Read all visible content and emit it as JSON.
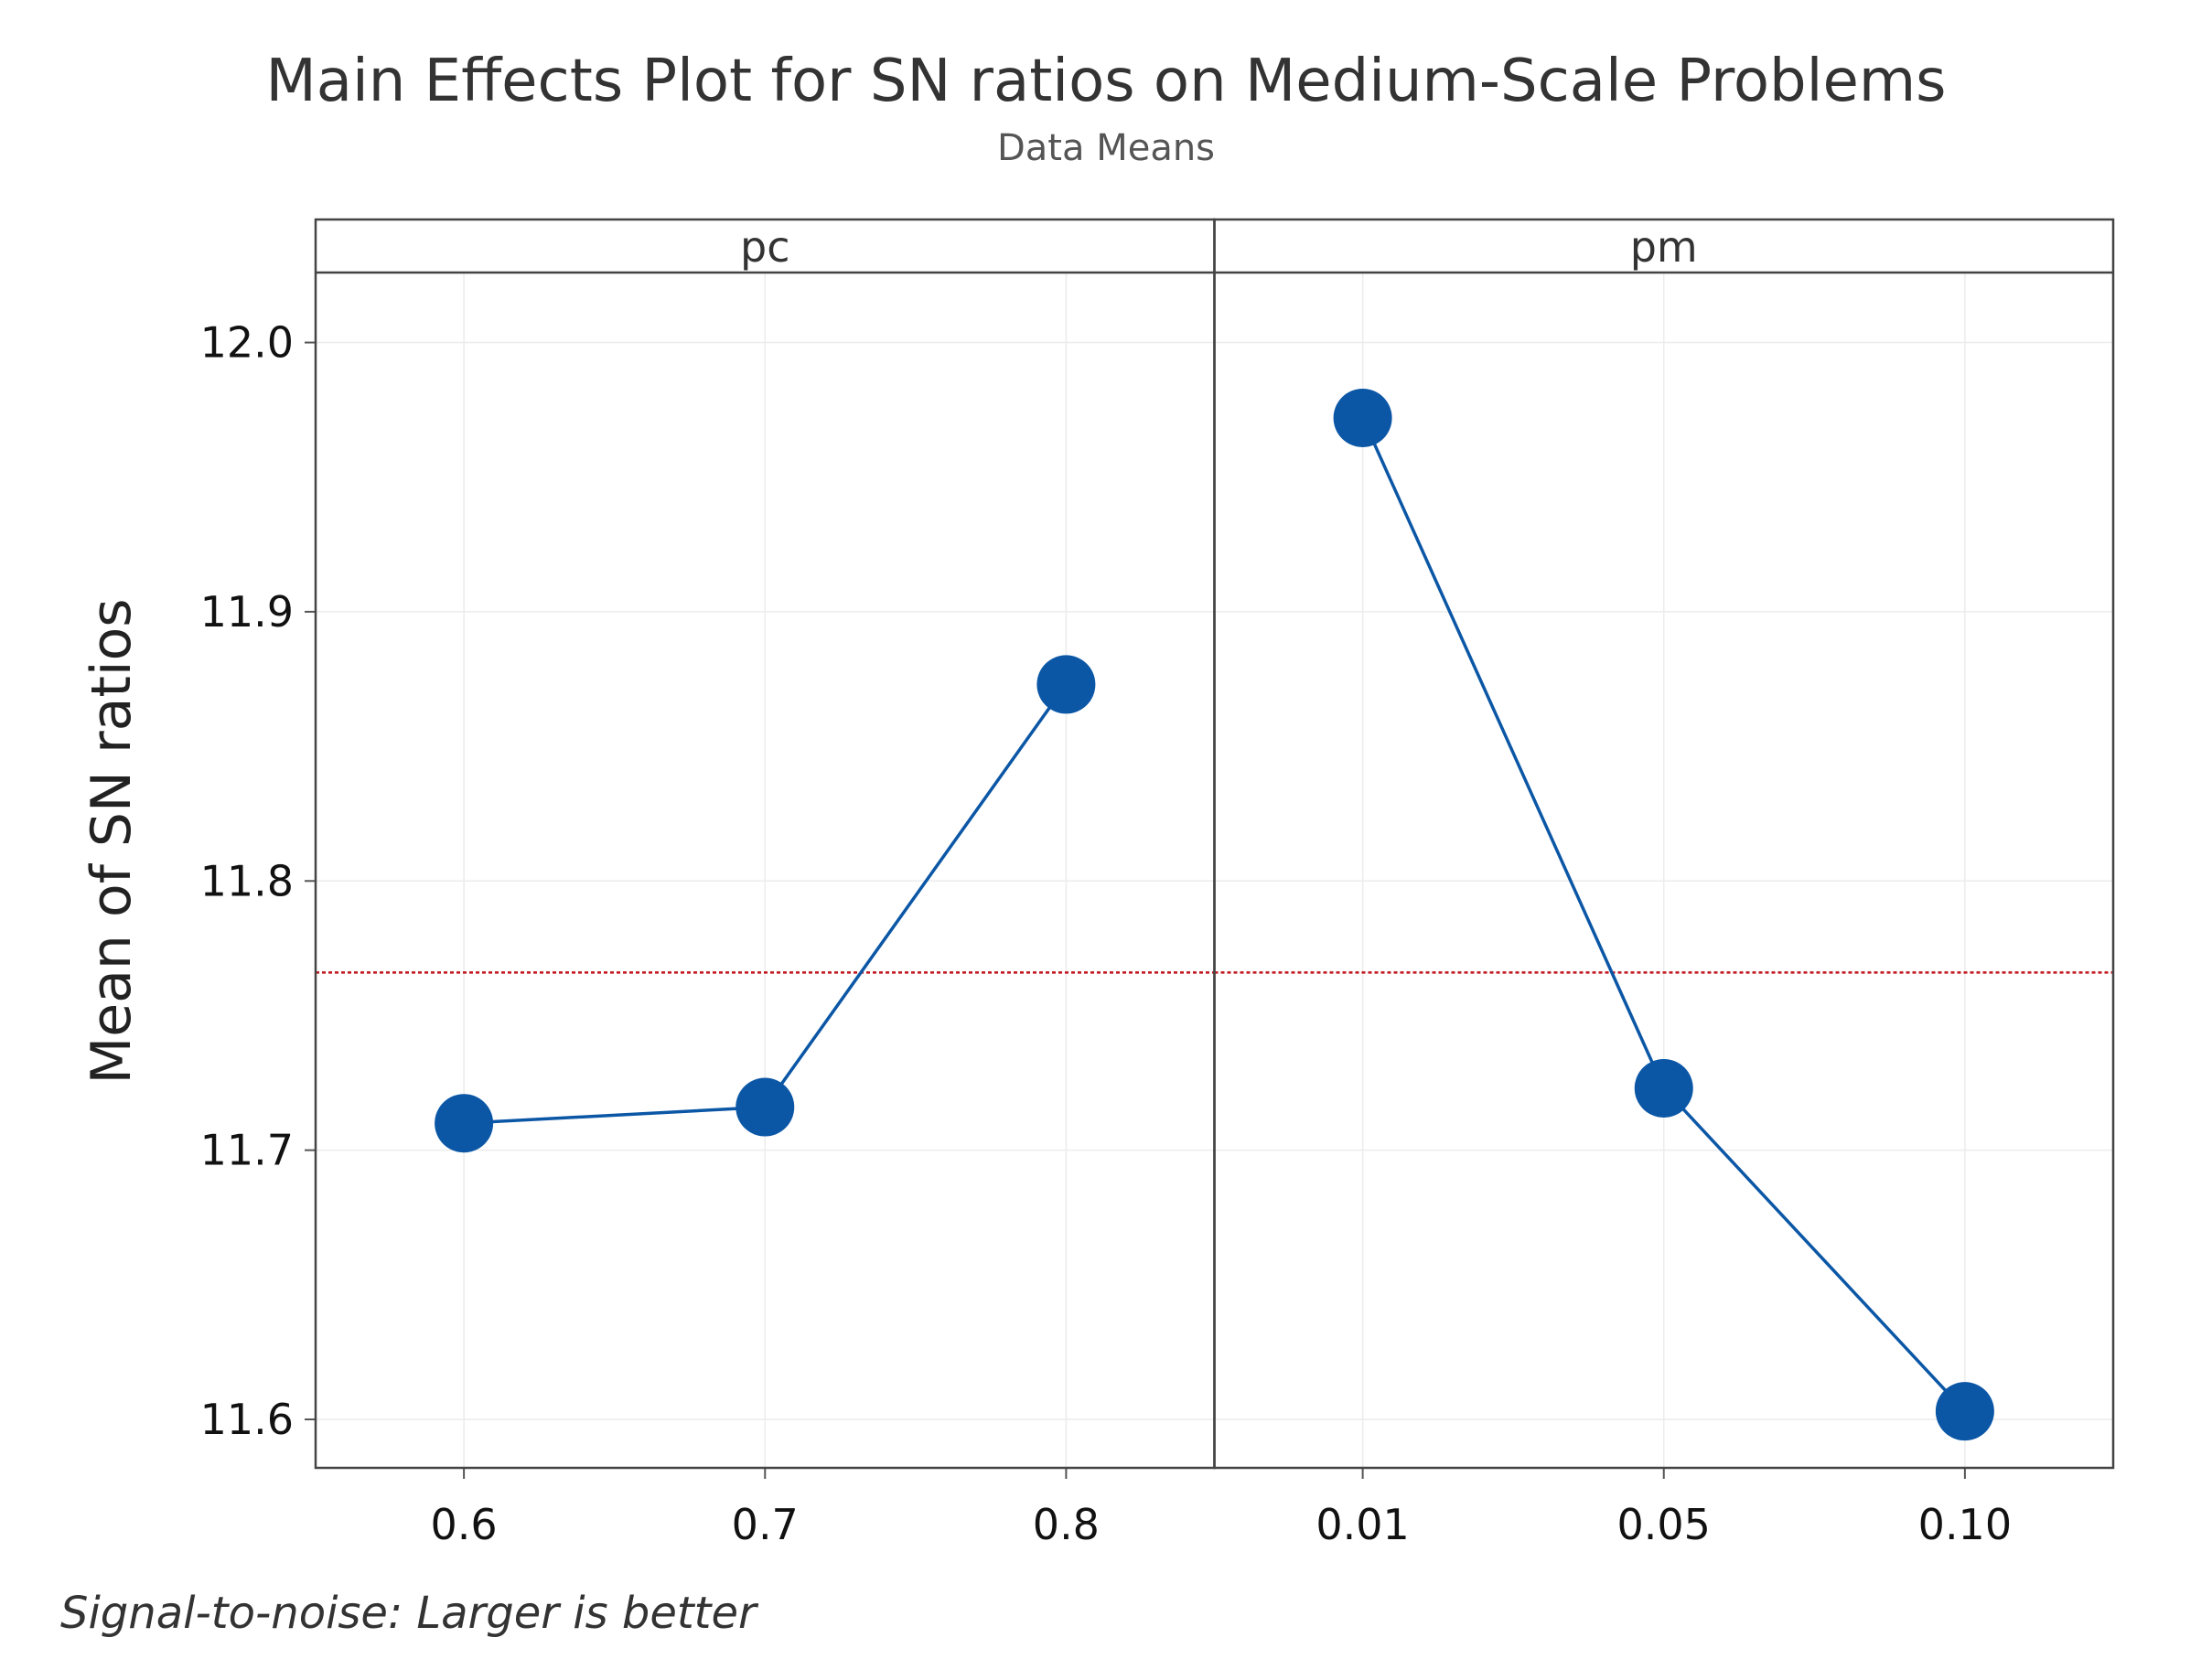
{
  "chart_data": {
    "type": "line",
    "title": "Main Effects Plot for SN ratios on Medium-Scale Problems",
    "subtitle": "Data Means",
    "ylabel": "Mean of SN ratios",
    "ylim": [
      11.582,
      12.026
    ],
    "yticks": [
      "11.6",
      "11.7",
      "11.8",
      "11.9",
      "12.0"
    ],
    "grand_mean": 11.766,
    "grid": true,
    "footnote": "Signal-to-noise: Larger is better",
    "colors": {
      "line": "#0b57a6",
      "marker": "#0b57a6",
      "mean_line": "#c0141c"
    },
    "panels": [
      {
        "name": "pc",
        "categories": [
          "0.6",
          "0.7",
          "0.8"
        ],
        "values": [
          11.71,
          11.716,
          11.873
        ]
      },
      {
        "name": "pm",
        "categories": [
          "0.01",
          "0.05",
          "0.10"
        ],
        "values": [
          11.972,
          11.723,
          11.603
        ]
      }
    ]
  }
}
